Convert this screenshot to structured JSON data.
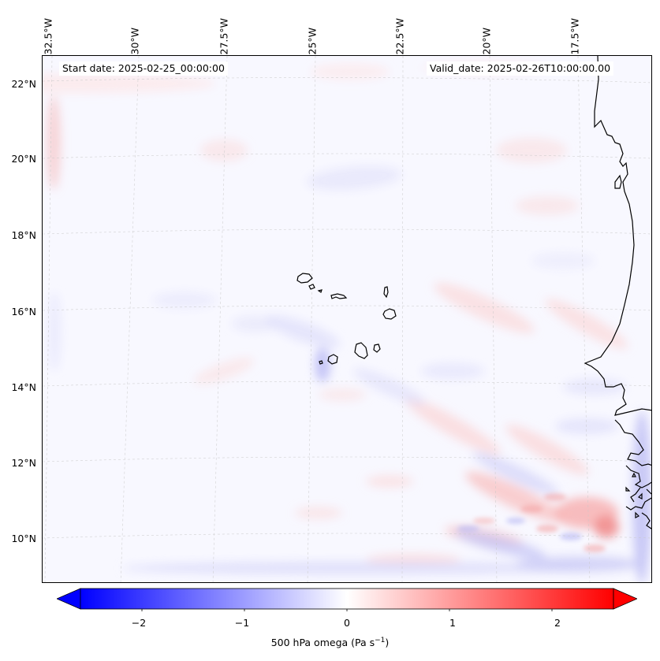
{
  "map": {
    "start_date": "Start date: 2025-02-25_00:00:00",
    "valid_date": "Valid_date: 2025-02-26T10:00:00.00",
    "lon_labels": [
      "32.5°W",
      "30°W",
      "27.5°W",
      "25°W",
      "22.5°W",
      "20°W",
      "17.5°W"
    ],
    "lat_labels": [
      "22°N",
      "20°N",
      "18°N",
      "16°N",
      "14°N",
      "12°N",
      "10°N"
    ],
    "features": {
      "islands": "Cape Verde Islands",
      "coastline": "West African coast"
    },
    "colors": {
      "background": "#f8f8ff",
      "positive": "#ff0000",
      "negative": "#0000ff",
      "coast": "#000000"
    }
  },
  "colorbar": {
    "label": "500 hPa omega (Pa s",
    "label_sup": "−1",
    "label_tail": ")",
    "ticks": [
      "−2",
      "−1",
      "0",
      "1",
      "2"
    ],
    "tick_values": [
      -2,
      -1,
      0,
      1,
      2
    ],
    "range": [
      -2.6,
      2.6
    ],
    "colormap": "bwr"
  }
}
